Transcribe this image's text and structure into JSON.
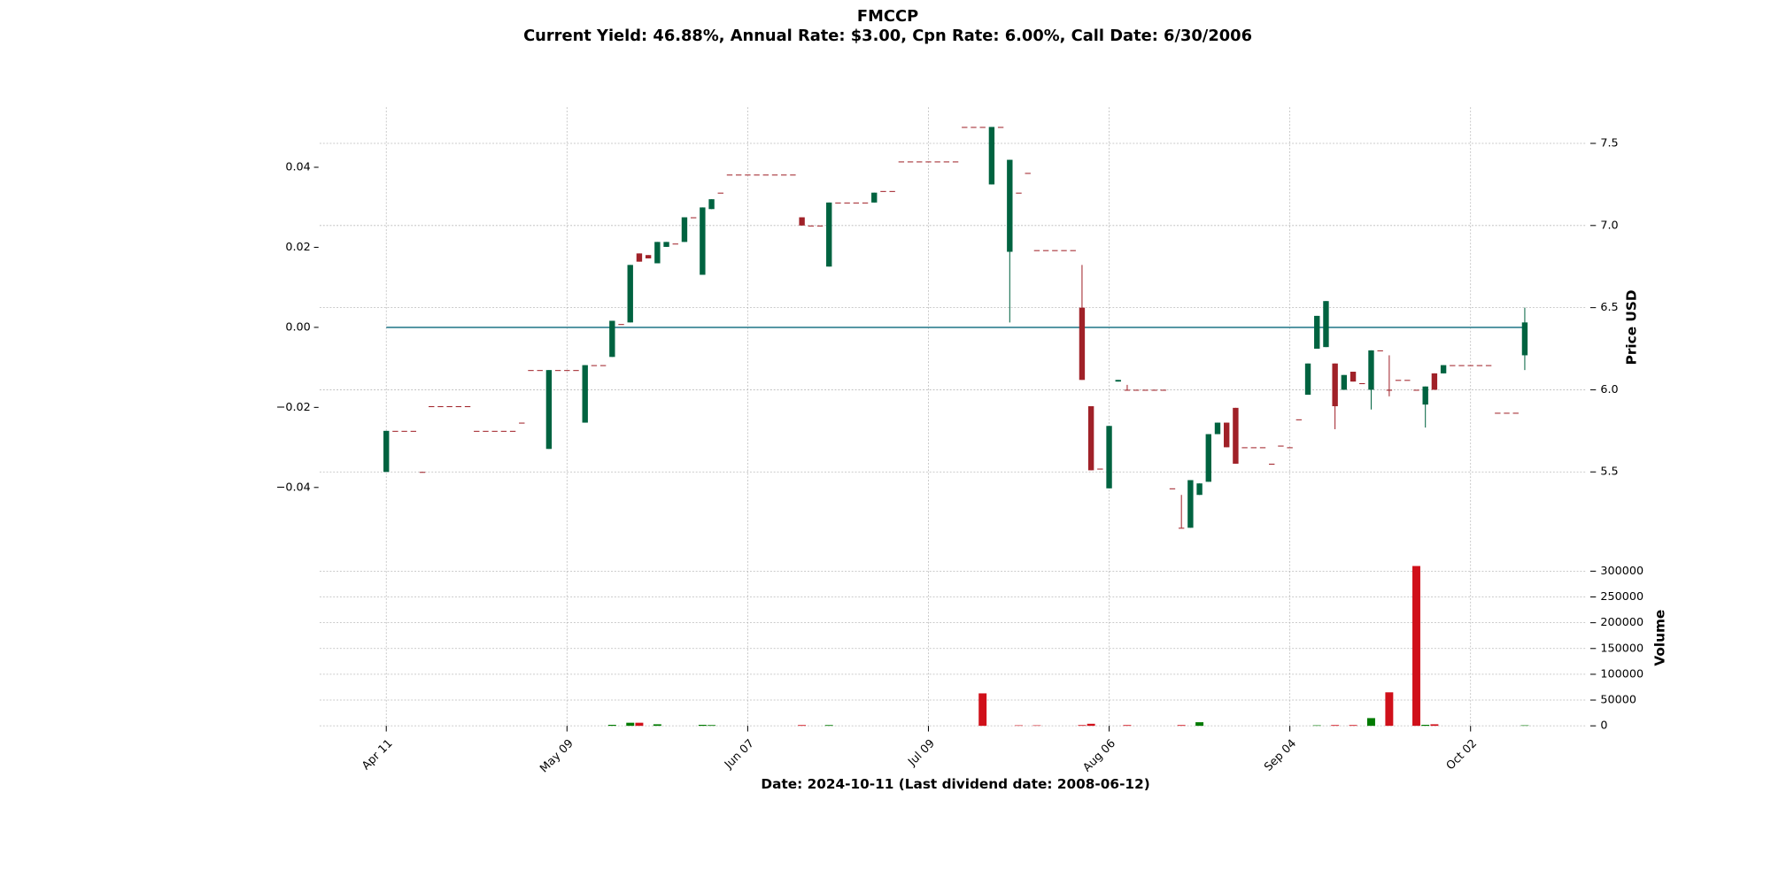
{
  "chart_data": {
    "type": "candlestick",
    "title": "FMCCP",
    "subtitle": "Current Yield: 46.88%, Annual Rate: $3.00, Cpn Rate: 6.00%, Call Date: 6/30/2006",
    "x_label": "Date: 2024-10-11   (Last dividend date: 2008-06-12)",
    "y_label": "Price USD",
    "volume_label": "Volume",
    "grid": true,
    "up_color": "#006340",
    "down_color": "#a02128",
    "volume_up_color": "#007a00",
    "volume_down_color": "#d0101a",
    "categories": [
      "Apr 11",
      null,
      null,
      null,
      null,
      null,
      null,
      null,
      null,
      null,
      null,
      null,
      null,
      null,
      null,
      null,
      null,
      null,
      null,
      null,
      "May 09",
      null,
      null,
      null,
      null,
      null,
      null,
      null,
      null,
      null,
      null,
      null,
      null,
      null,
      null,
      null,
      null,
      null,
      null,
      null,
      "Jun 07",
      null,
      null,
      null,
      null,
      null,
      null,
      null,
      null,
      null,
      null,
      null,
      null,
      null,
      null,
      null,
      null,
      null,
      null,
      null,
      "Jul 09",
      null,
      null,
      null,
      null,
      null,
      null,
      null,
      null,
      null,
      null,
      null,
      null,
      null,
      null,
      null,
      null,
      null,
      null,
      null,
      "Aug 06",
      null,
      null,
      null,
      null,
      null,
      null,
      null,
      null,
      null,
      null,
      null,
      null,
      null,
      null,
      null,
      null,
      null,
      null,
      null,
      "Sep 04",
      null,
      null,
      null,
      null,
      null,
      null,
      null,
      null,
      null,
      null,
      null,
      null,
      null,
      null,
      null,
      null,
      null,
      null,
      null,
      "Oct 02",
      null,
      null,
      null,
      null,
      null,
      null
    ],
    "open": [
      5.5,
      5.75,
      5.75,
      5.75,
      5.5,
      5.9,
      5.9,
      5.9,
      5.9,
      5.9,
      5.75,
      5.75,
      5.75,
      5.75,
      5.75,
      5.8,
      6.12,
      6.12,
      5.64,
      6.12,
      6.12,
      6.12,
      5.8,
      6.15,
      6.15,
      6.2,
      6.4,
      6.41,
      6.83,
      6.82,
      6.77,
      6.87,
      6.89,
      6.9,
      7.05,
      6.7,
      7.1,
      7.2,
      7.31,
      7.31,
      7.31,
      7.31,
      7.31,
      7.31,
      7.31,
      7.31,
      7.05,
      7,
      7,
      6.75,
      7.14,
      7.14,
      7.14,
      7.14,
      7.14,
      7.21,
      7.21,
      7.39,
      7.39,
      7.39,
      7.39,
      7.39,
      7.39,
      7.39,
      7.6,
      7.6,
      7.6,
      7.25,
      7.6,
      6.84,
      7.2,
      7.32,
      6.85,
      6.85,
      6.85,
      6.85,
      6.85,
      6.5,
      5.9,
      5.52,
      5.4,
      6.05,
      6,
      6,
      6,
      6,
      6,
      5.4,
      5.16,
      5.16,
      5.36,
      5.44,
      5.73,
      5.8,
      5.89,
      5.65,
      5.65,
      5.65,
      5.55,
      5.66,
      5.65,
      5.82,
      5.97,
      6.25,
      6.26,
      6.16,
      6,
      6.11,
      6.04,
      6,
      6.24,
      6,
      6.06,
      6.06,
      6,
      5.91,
      6.1,
      6.1,
      6.15,
      6.15,
      6.15,
      6.15,
      6.15,
      5.86,
      5.86,
      5.86,
      6.21
    ],
    "high": [
      5.75,
      5.75,
      5.75,
      5.75,
      5.5,
      5.9,
      5.9,
      5.9,
      5.9,
      5.9,
      5.75,
      5.75,
      5.75,
      5.75,
      5.75,
      5.8,
      6.12,
      6.12,
      6.12,
      6.12,
      6.12,
      6.12,
      6.15,
      6.15,
      6.15,
      6.42,
      6.4,
      6.76,
      6.83,
      6.82,
      6.9,
      6.9,
      6.89,
      7.05,
      7.05,
      7.11,
      7.16,
      7.2,
      7.31,
      7.31,
      7.31,
      7.31,
      7.31,
      7.31,
      7.31,
      7.31,
      7.05,
      7,
      7,
      7.14,
      7.14,
      7.14,
      7.14,
      7.14,
      7.2,
      7.21,
      7.21,
      7.39,
      7.39,
      7.39,
      7.39,
      7.39,
      7.39,
      7.39,
      7.6,
      7.6,
      7.6,
      7.6,
      7.6,
      7.4,
      7.2,
      7.32,
      6.85,
      6.85,
      6.85,
      6.85,
      6.85,
      6.76,
      5.9,
      5.52,
      5.78,
      6.06,
      6.03,
      6,
      6,
      6,
      6,
      5.4,
      5.36,
      5.45,
      5.43,
      5.73,
      5.8,
      5.8,
      5.89,
      5.65,
      5.65,
      5.65,
      5.55,
      5.66,
      5.65,
      5.82,
      6.16,
      6.45,
      6.54,
      6.16,
      6.09,
      6.11,
      6.04,
      6.24,
      6.24,
      6.21,
      6.06,
      6.06,
      6,
      6.02,
      6.1,
      6.15,
      6.15,
      6.15,
      6.15,
      6.15,
      6.15,
      5.86,
      5.86,
      5.86,
      6.5
    ],
    "low": [
      5.5,
      5.75,
      5.75,
      5.75,
      5.5,
      5.9,
      5.9,
      5.9,
      5.9,
      5.9,
      5.75,
      5.75,
      5.75,
      5.75,
      5.75,
      5.8,
      6.12,
      6.12,
      5.64,
      6.12,
      6.12,
      6.12,
      5.8,
      6.15,
      6.15,
      6.2,
      6.4,
      6.41,
      6.78,
      6.8,
      6.77,
      6.87,
      6.89,
      6.9,
      7.05,
      6.7,
      7.1,
      7.2,
      7.31,
      7.31,
      7.31,
      7.31,
      7.31,
      7.31,
      7.31,
      7.31,
      7,
      7,
      7,
      6.75,
      7.14,
      7.14,
      7.14,
      7.14,
      7.14,
      7.21,
      7.21,
      7.39,
      7.39,
      7.39,
      7.39,
      7.39,
      7.39,
      7.39,
      7.6,
      7.6,
      7.6,
      7.25,
      7.6,
      6.41,
      7.2,
      7.32,
      6.85,
      6.85,
      6.85,
      6.85,
      6.85,
      6.06,
      5.51,
      5.52,
      5.4,
      6.05,
      6,
      6,
      6,
      6,
      6,
      5.4,
      5.16,
      5.16,
      5.36,
      5.44,
      5.73,
      5.65,
      5.55,
      5.65,
      5.65,
      5.65,
      5.55,
      5.66,
      5.65,
      5.82,
      5.97,
      6.25,
      6.26,
      5.76,
      6,
      6.05,
      6.04,
      5.88,
      6.24,
      5.96,
      6.06,
      6.06,
      6,
      5.77,
      6,
      6.1,
      6.15,
      6.15,
      6.15,
      6.15,
      6.15,
      5.86,
      5.86,
      5.86,
      6.12
    ],
    "close": [
      5.75,
      5.75,
      5.75,
      5.75,
      5.5,
      5.9,
      5.9,
      5.9,
      5.9,
      5.9,
      5.75,
      5.75,
      5.75,
      5.75,
      5.75,
      5.8,
      6.12,
      6.12,
      6.12,
      6.12,
      6.12,
      6.12,
      6.15,
      6.15,
      6.15,
      6.42,
      6.4,
      6.76,
      6.78,
      6.8,
      6.9,
      6.9,
      6.89,
      7.05,
      7.05,
      7.11,
      7.16,
      7.2,
      7.31,
      7.31,
      7.31,
      7.31,
      7.31,
      7.31,
      7.31,
      7.31,
      7,
      7,
      7,
      7.14,
      7.14,
      7.14,
      7.14,
      7.14,
      7.2,
      7.21,
      7.21,
      7.39,
      7.39,
      7.39,
      7.39,
      7.39,
      7.39,
      7.39,
      7.6,
      7.6,
      7.6,
      7.6,
      7.6,
      7.4,
      7.2,
      7.32,
      6.85,
      6.85,
      6.85,
      6.85,
      6.85,
      6.06,
      5.51,
      5.52,
      5.78,
      6.06,
      6,
      6,
      6,
      6,
      6,
      5.4,
      5.16,
      5.45,
      5.43,
      5.73,
      5.8,
      5.65,
      5.55,
      5.65,
      5.65,
      5.65,
      5.55,
      5.66,
      5.65,
      5.82,
      6.16,
      6.45,
      6.54,
      5.9,
      6.09,
      6.05,
      6.04,
      6.24,
      6.24,
      6,
      6.06,
      6.06,
      6,
      6.02,
      6,
      6.15,
      6.15,
      6.15,
      6.15,
      6.15,
      6.15,
      5.86,
      5.86,
      5.86,
      6.41
    ],
    "volume": [
      0,
      0,
      0,
      0,
      0,
      0,
      0,
      0,
      0,
      0,
      0,
      0,
      0,
      0,
      0,
      0,
      0,
      0,
      0,
      0,
      0,
      0,
      0,
      0,
      0,
      2000,
      0,
      6000,
      6000,
      0,
      3000,
      0,
      0,
      0,
      0,
      2000,
      1500,
      0,
      0,
      0,
      0,
      0,
      0,
      0,
      0,
      0,
      1500,
      0,
      0,
      1500,
      0,
      0,
      0,
      0,
      0,
      0,
      0,
      0,
      0,
      0,
      0,
      0,
      0,
      0,
      0,
      0,
      63000,
      0,
      0,
      0,
      1000,
      0,
      1000,
      0,
      0,
      0,
      0,
      1500,
      4000,
      0,
      0,
      0,
      1500,
      0,
      0,
      0,
      0,
      0,
      1500,
      0,
      7000,
      0,
      0,
      0,
      0,
      0,
      0,
      0,
      0,
      0,
      0,
      0,
      0,
      1000,
      0,
      1500,
      0,
      1500,
      0,
      15000,
      0,
      65000,
      0,
      0,
      310000,
      2000,
      3000,
      0,
      0,
      0,
      0,
      0,
      0,
      0,
      0,
      0,
      1000
    ],
    "ylim": [
      5.04,
      7.72
    ],
    "yticks": [
      5.5,
      {
        "value": 6,
        "label": "6.0"
      },
      6.5,
      {
        "value": 7,
        "label": "7.0"
      },
      7.5
    ],
    "y2lim": [
      -0.055,
      0.055
    ],
    "y2ticks": [
      {
        "value": -0.04,
        "label": "−0.04"
      },
      {
        "value": -0.02,
        "label": "−0.02"
      },
      {
        "value": 0,
        "label": "0.00"
      },
      0.02,
      0.04
    ],
    "hlines": [
      {
        "value": 0,
        "axis": "y2",
        "color": "#2f7f8f"
      }
    ],
    "volume_lim": [
      0,
      335000
    ],
    "volume_ticks": [
      0,
      50000,
      100000,
      150000,
      200000,
      250000,
      300000
    ]
  }
}
